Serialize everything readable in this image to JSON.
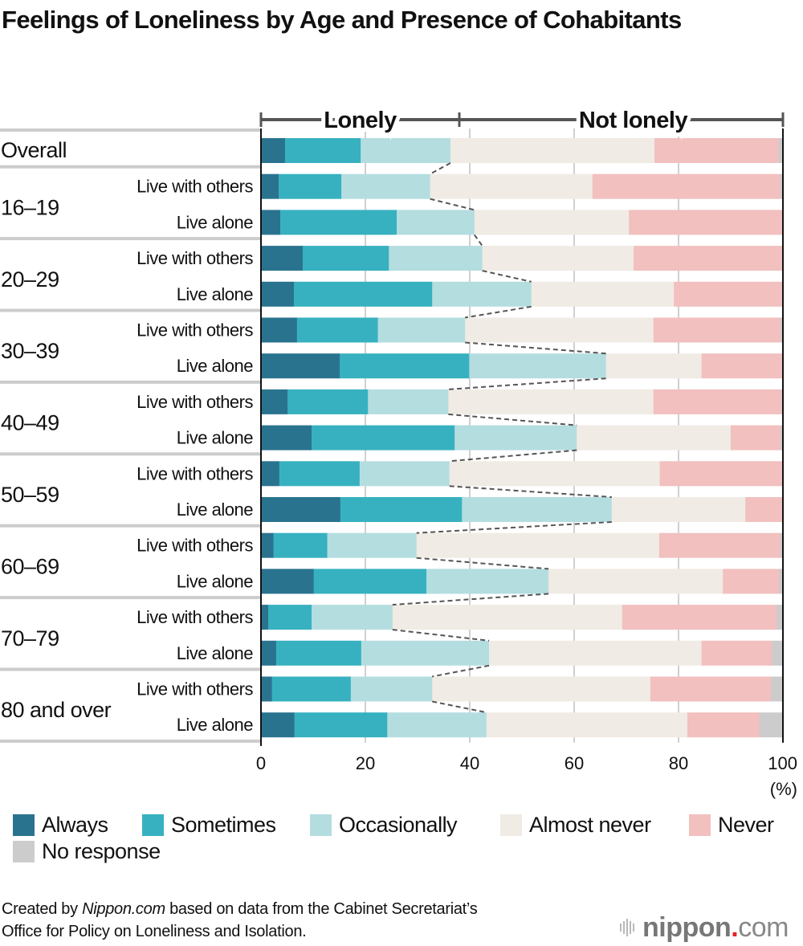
{
  "title": "Feelings of Loneliness by Age and Presence of Cohabitants",
  "chart_data": {
    "type": "bar",
    "orientation": "horizontal",
    "stacked": true,
    "title": "Feelings of Loneliness by Age and Presence of Cohabitants",
    "xlabel": "(%)",
    "xlim": [
      0,
      100
    ],
    "xticks": [
      0,
      20,
      40,
      60,
      80,
      100
    ],
    "grid": true,
    "bracket_labels": [
      {
        "label": "Lonely",
        "from": 0,
        "to": 38
      },
      {
        "label": "Not lonely",
        "from": 38,
        "to": 100
      }
    ],
    "series_names": [
      "Always",
      "Sometimes",
      "Occasionally",
      "Almost never",
      "Never",
      "No response"
    ],
    "series_colors": [
      "#2a738f",
      "#37b1c0",
      "#b4dde0",
      "#f0ebe4",
      "#f1c0bf",
      "#cccccc"
    ],
    "groups": [
      {
        "label": "Overall",
        "rows": [
          {
            "label": "",
            "values": [
              4.6,
              14.5,
              17.2,
              39.1,
              23.8,
              0.8
            ]
          }
        ]
      },
      {
        "label": "16–19",
        "rows": [
          {
            "label": "Live with others",
            "values": [
              3.4,
              12.0,
              17.0,
              31.1,
              36.0,
              0.5
            ]
          },
          {
            "label": "Live alone",
            "values": [
              3.7,
              22.3,
              14.9,
              29.6,
              29.5,
              0.0
            ]
          }
        ]
      },
      {
        "label": "20–29",
        "rows": [
          {
            "label": "Live with others",
            "values": [
              8.0,
              16.5,
              17.9,
              29.0,
              28.6,
              0.0
            ]
          },
          {
            "label": "Live alone",
            "values": [
              6.3,
              26.5,
              19.0,
              27.3,
              20.9,
              0.0
            ]
          }
        ]
      },
      {
        "label": "30–39",
        "rows": [
          {
            "label": "Live with others",
            "values": [
              6.9,
              15.5,
              16.7,
              36.1,
              24.4,
              0.4
            ]
          },
          {
            "label": "Live alone",
            "values": [
              15.1,
              24.8,
              26.2,
              18.3,
              15.6,
              0.0
            ]
          }
        ]
      },
      {
        "label": "40–49",
        "rows": [
          {
            "label": "Live with others",
            "values": [
              5.1,
              15.4,
              15.4,
              39.3,
              24.6,
              0.2
            ]
          },
          {
            "label": "Live alone",
            "values": [
              9.7,
              27.4,
              23.4,
              29.5,
              9.6,
              0.4
            ]
          }
        ]
      },
      {
        "label": "50–59",
        "rows": [
          {
            "label": "Live with others",
            "values": [
              3.5,
              15.4,
              17.2,
              40.3,
              23.6,
              0.0
            ]
          },
          {
            "label": "Live alone",
            "values": [
              15.2,
              23.3,
              28.7,
              25.6,
              7.2,
              0.0
            ]
          }
        ]
      },
      {
        "label": "60–69",
        "rows": [
          {
            "label": "Live with others",
            "values": [
              2.4,
              10.3,
              17.1,
              46.5,
              23.2,
              0.5
            ]
          },
          {
            "label": "Live alone",
            "values": [
              10.1,
              21.6,
              23.4,
              33.4,
              10.8,
              0.7
            ]
          }
        ]
      },
      {
        "label": "70–79",
        "rows": [
          {
            "label": "Live with others",
            "values": [
              1.4,
              8.3,
              15.5,
              44.0,
              29.6,
              1.2
            ]
          },
          {
            "label": "Live alone",
            "values": [
              2.9,
              16.3,
              24.5,
              40.7,
              13.5,
              2.1
            ]
          }
        ]
      },
      {
        "label": "80 and over",
        "rows": [
          {
            "label": "Live with others",
            "values": [
              2.1,
              15.1,
              15.6,
              41.8,
              23.1,
              2.3
            ]
          },
          {
            "label": "Live alone",
            "values": [
              6.4,
              17.8,
              19.0,
              38.5,
              13.8,
              4.5
            ]
          }
        ]
      }
    ]
  },
  "legend": [
    {
      "label": "Always",
      "color": "#2a738f"
    },
    {
      "label": "Sometimes",
      "color": "#37b1c0"
    },
    {
      "label": "Occasionally",
      "color": "#b4dde0"
    },
    {
      "label": "Almost never",
      "color": "#f0ebe4"
    },
    {
      "label": "Never",
      "color": "#f1c0bf"
    },
    {
      "label": "No response",
      "color": "#cccccc"
    }
  ],
  "source": {
    "prefix": "Created by ",
    "brand": "Nippon.com",
    "line1_rest": " based on data from the Cabinet Secretariat’s",
    "line2": "Office for Policy on Loneliness and Isolation."
  },
  "logo": {
    "name": "nippon",
    "dot": ".",
    "tld": "com"
  }
}
